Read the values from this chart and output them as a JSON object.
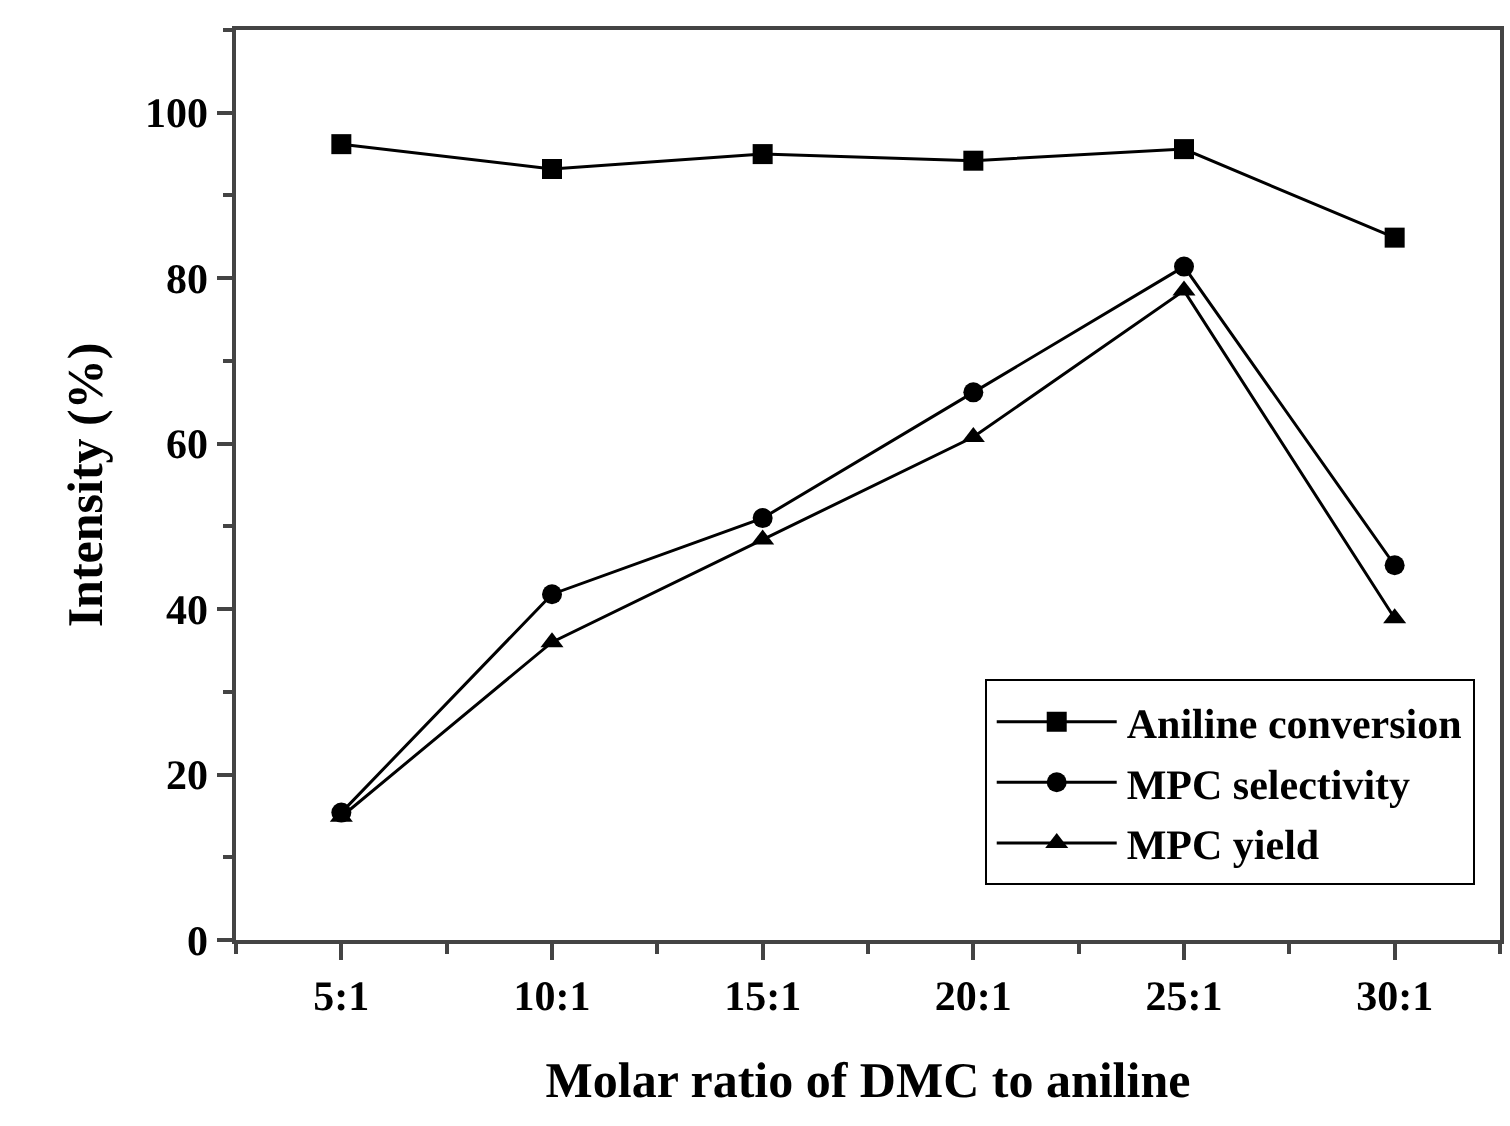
{
  "chart_data": {
    "type": "line",
    "xlabel": "Molar ratio of DMC to aniline",
    "ylabel": "Intensity (%)",
    "categories": [
      "5:1",
      "10:1",
      "15:1",
      "20:1",
      "25:1",
      "30:1"
    ],
    "series": [
      {
        "name": "Aniline conversion",
        "color": "#000000",
        "marker": "square",
        "values": [
          96.2,
          93.2,
          95.0,
          94.2,
          95.6,
          84.9
        ]
      },
      {
        "name": "MPC selectivity",
        "color": "#000000",
        "marker": "circle",
        "values": [
          15.4,
          41.8,
          51.0,
          66.2,
          81.4,
          45.3
        ]
      },
      {
        "name": "MPC yield",
        "color": "#000000",
        "marker": "triangle",
        "values": [
          14.9,
          36.0,
          48.4,
          60.8,
          78.5,
          38.9
        ]
      }
    ],
    "ylim": [
      0,
      110
    ],
    "yticks": [
      0,
      20,
      40,
      60,
      80,
      100
    ],
    "grid": false,
    "legend": "bottom right",
    "line_style": "solid"
  }
}
